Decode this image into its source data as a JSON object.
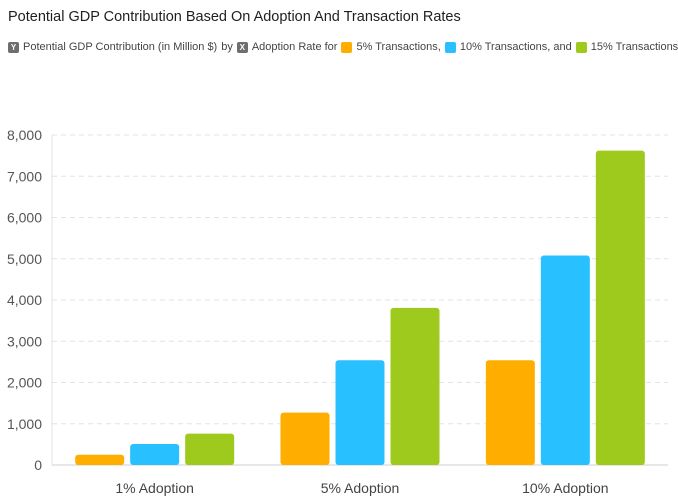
{
  "header": {
    "title": "Potential GDP Contribution Based On Adoption And Transaction Rates",
    "y_badge": "Y",
    "y_text": "Potential GDP Contribution (in Million $)",
    "by_text": "by",
    "x_badge": "X",
    "x_text": "Adoption Rate for",
    "legend_1": "5% Transactions,",
    "legend_2": "10% Transactions, and",
    "legend_3": "15% Transactions"
  },
  "colors": {
    "series_1": "#ffae00",
    "series_2": "#29c0ff",
    "series_3": "#9dca1c",
    "grid": "#e3e3e3",
    "axis": "#cfcfcf"
  },
  "chart_data": {
    "type": "bar",
    "title": "Potential GDP Contribution Based On Adoption And Transaction Rates",
    "xlabel": "",
    "ylabel": "",
    "categories": [
      "1% Adoption",
      "5% Adoption",
      "10% Adoption"
    ],
    "series": [
      {
        "name": "5% Transactions",
        "values": [
          250,
          1270,
          2540
        ]
      },
      {
        "name": "10% Transactions",
        "values": [
          510,
          2540,
          5080
        ]
      },
      {
        "name": "15% Transactions",
        "values": [
          760,
          3810,
          7620
        ]
      }
    ],
    "ylim": [
      0,
      8000
    ],
    "yticks": [
      "0",
      "1,000",
      "2,000",
      "3,000",
      "4,000",
      "5,000",
      "6,000",
      "7,000",
      "8,000"
    ],
    "grid": true,
    "legend_position": "top"
  }
}
